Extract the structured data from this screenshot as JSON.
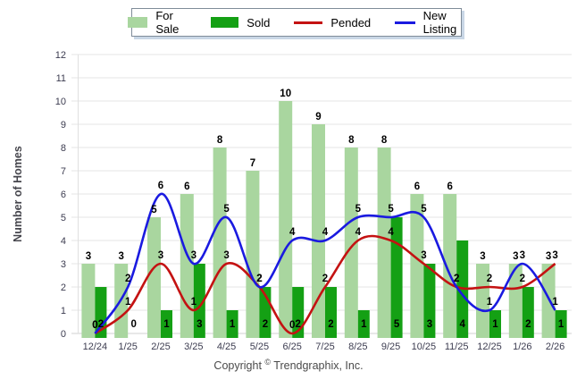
{
  "legend": {
    "items": [
      {
        "label": "For Sale",
        "slug": "for-sale",
        "marker": "rect",
        "color": "#a9d69f"
      },
      {
        "label": "Sold",
        "slug": "sold",
        "marker": "rect",
        "color": "#14a014"
      },
      {
        "label": "Pended",
        "slug": "pended",
        "marker": "line",
        "color": "#c41212"
      },
      {
        "label": "New Listing",
        "slug": "new-listing",
        "marker": "line",
        "color": "#1a1ae0"
      }
    ]
  },
  "chart_data": {
    "type": "bar",
    "subtype": "grouped-bars-with-smooth-lines",
    "categories": [
      "12/24",
      "1/25",
      "2/25",
      "3/25",
      "4/25",
      "5/25",
      "6/25",
      "7/25",
      "8/25",
      "9/25",
      "10/25",
      "11/25",
      "12/25",
      "1/26",
      "2/26"
    ],
    "series": [
      {
        "name": "For Sale",
        "type": "bar",
        "color": "#a9d69f",
        "values": [
          3,
          3,
          5,
          6,
          8,
          7,
          10,
          9,
          8,
          8,
          6,
          6,
          3,
          3,
          3
        ]
      },
      {
        "name": "Sold",
        "type": "bar",
        "color": "#14a014",
        "values": [
          2,
          0,
          1,
          3,
          1,
          2,
          2,
          2,
          1,
          5,
          3,
          4,
          1,
          2,
          1
        ]
      },
      {
        "name": "Pended",
        "type": "line",
        "color": "#c41212",
        "values": [
          0,
          1,
          3,
          1,
          3,
          2,
          0,
          2,
          4,
          4,
          3,
          2,
          2,
          2,
          3
        ]
      },
      {
        "name": "New Listing",
        "type": "line",
        "color": "#1a1ae0",
        "values": [
          0,
          2,
          6,
          3,
          5,
          2,
          4,
          4,
          5,
          5,
          5,
          2,
          1,
          3,
          1
        ]
      }
    ],
    "title": "",
    "xlabel": "",
    "ylabel": "Number of Homes",
    "ylim": [
      0,
      12
    ],
    "ytick_step": 1,
    "grid": "horizontal",
    "legend_position": "top-center",
    "data_labels": true,
    "colors": {
      "gridline": "#e6e6e6",
      "zero_line": "#d2d2d2",
      "tick_text": "#3c3c50",
      "axis_title_text": "#45454c",
      "data_label_text": "#000000"
    }
  },
  "footer": {
    "copyright_prefix": "Copyright ",
    "copyright_symbol": "©",
    "copyright_suffix": " Trendgraphix, Inc."
  }
}
